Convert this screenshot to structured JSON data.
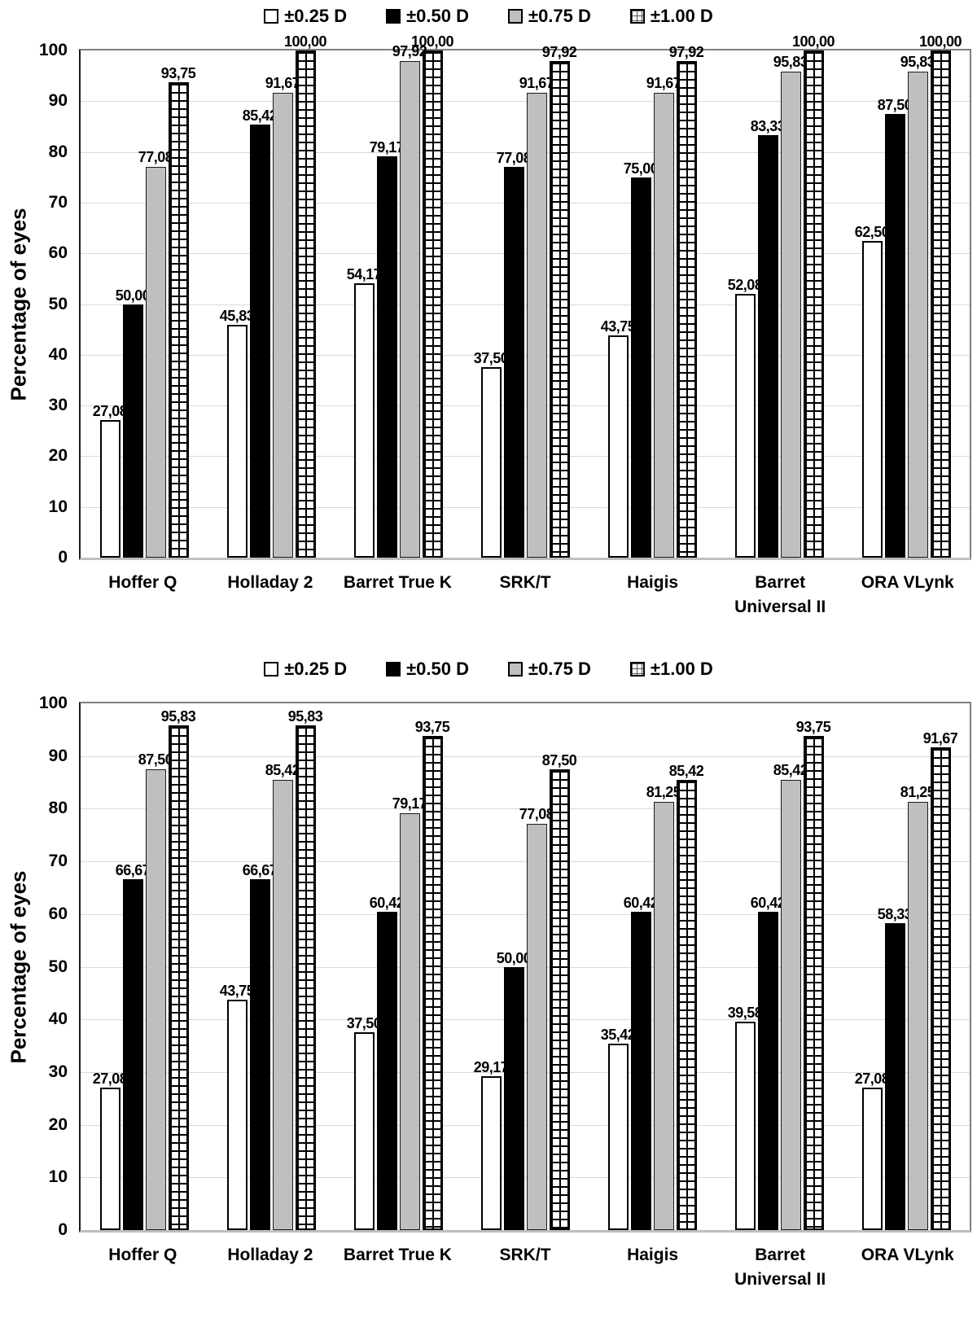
{
  "colors": {
    "bar_white": "#ffffff",
    "bar_black": "#000000",
    "bar_gray": "#bfbfbf",
    "bar_checker_bg": "#ffffff",
    "grid_line": "#d9d9d9",
    "axis_line": "#7f7f7f"
  },
  "chart_data": [
    {
      "type": "bar",
      "title": "",
      "xlabel": "",
      "ylabel": "Percentage of eyes",
      "ylim": [
        0,
        100
      ],
      "ytick_step": 10,
      "grid": true,
      "legend_position": "top-center",
      "decimal_separator": ",",
      "categories": [
        "Hoffer Q",
        "Holladay 2",
        "Barret True K",
        "SRK/T",
        "Haigis",
        "Barret\nUniversal II",
        "ORA VLynk"
      ],
      "series": [
        {
          "name": "±0.25 D",
          "pattern": "white",
          "values": [
            27.08,
            45.83,
            54.17,
            37.5,
            43.75,
            52.08,
            62.5
          ]
        },
        {
          "name": "±0.50 D",
          "pattern": "black",
          "values": [
            50.0,
            85.42,
            79.17,
            77.08,
            75.0,
            83.33,
            87.5
          ]
        },
        {
          "name": "±0.75 D",
          "pattern": "gray",
          "values": [
            77.08,
            91.67,
            97.92,
            91.67,
            91.67,
            95.83,
            95.83
          ]
        },
        {
          "name": "±1.00 D",
          "pattern": "checker",
          "values": [
            93.75,
            100.0,
            100.0,
            97.92,
            97.92,
            100.0,
            100.0
          ]
        }
      ]
    },
    {
      "type": "bar",
      "title": "",
      "xlabel": "",
      "ylabel": "Percentage of eyes",
      "ylim": [
        0,
        100
      ],
      "ytick_step": 10,
      "grid": true,
      "legend_position": "top-center",
      "decimal_separator": ",",
      "categories": [
        "Hoffer Q",
        "Holladay 2",
        "Barret True K",
        "SRK/T",
        "Haigis",
        "Barret\nUniversal II",
        "ORA VLynk"
      ],
      "series": [
        {
          "name": "±0.25 D",
          "pattern": "white",
          "values": [
            27.08,
            43.75,
            37.5,
            29.17,
            35.42,
            39.58,
            27.08
          ]
        },
        {
          "name": "±0.50 D",
          "pattern": "black",
          "values": [
            66.67,
            66.67,
            60.42,
            50.0,
            60.42,
            60.42,
            58.33
          ]
        },
        {
          "name": "±0.75 D",
          "pattern": "gray",
          "values": [
            87.5,
            85.42,
            79.17,
            77.08,
            81.25,
            85.42,
            81.25
          ]
        },
        {
          "name": "±1.00 D",
          "pattern": "checker",
          "values": [
            95.83,
            95.83,
            93.75,
            87.5,
            85.42,
            93.75,
            91.67
          ]
        }
      ]
    }
  ]
}
